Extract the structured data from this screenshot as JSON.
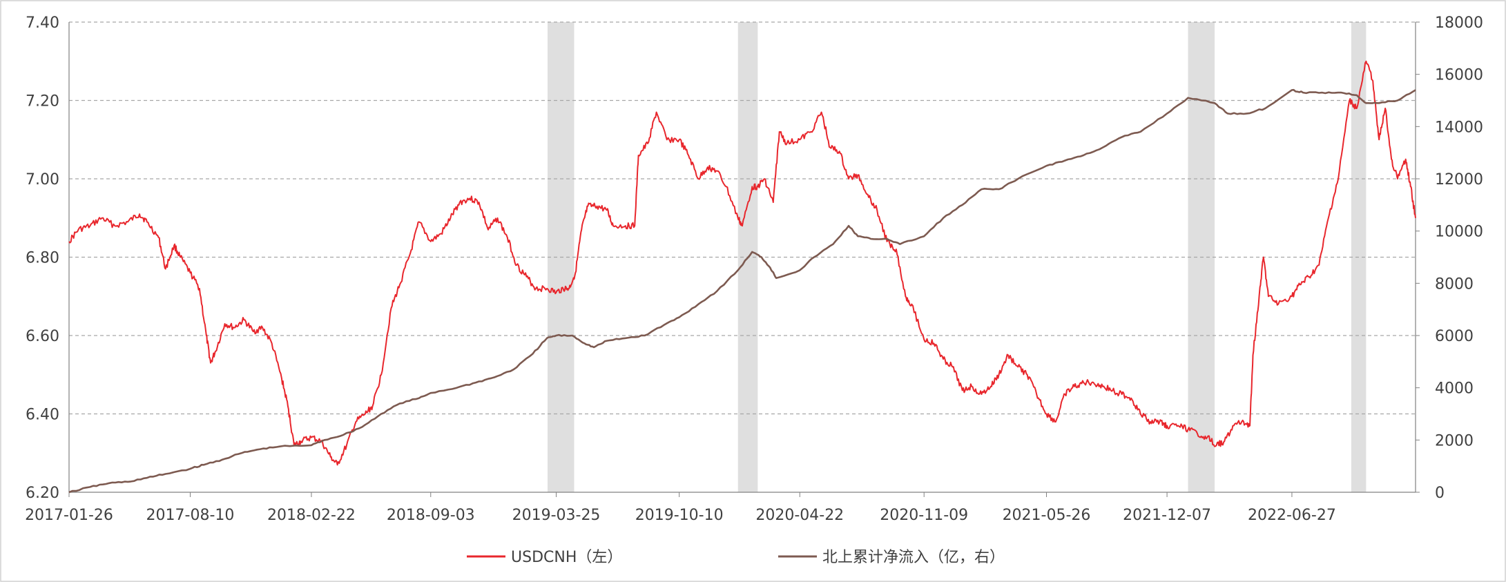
{
  "chart_data": {
    "type": "line",
    "title": "",
    "xlabel": "",
    "ylabel": "",
    "x_ticks": [
      "2017-01-26",
      "2017-08-10",
      "2018-02-22",
      "2018-09-03",
      "2019-03-25",
      "2019-10-10",
      "2020-04-22",
      "2020-11-09",
      "2021-05-26",
      "2021-12-07",
      "2022-06-27"
    ],
    "x_range": [
      "2017-01-26",
      "2023-01-13"
    ],
    "y_left": {
      "ticks": [
        "6.20",
        "6.40",
        "6.60",
        "6.80",
        "7.00",
        "7.20",
        "7.40"
      ],
      "ylim": [
        6.2,
        7.4
      ]
    },
    "y_right": {
      "ticks": [
        "0",
        "2000",
        "4000",
        "6000",
        "8000",
        "10000",
        "12000",
        "14000",
        "16000",
        "18000"
      ],
      "ylim": [
        0,
        18000
      ]
    },
    "grid": {
      "horizontal": true,
      "style": "dashed"
    },
    "legend_position": "bottom-center",
    "shaded_periods": [
      [
        "2019-03-11",
        "2019-04-23"
      ],
      [
        "2020-01-13",
        "2020-02-14"
      ],
      [
        "2022-01-10",
        "2022-02-22"
      ],
      [
        "2022-10-01",
        "2022-10-25"
      ]
    ],
    "series": [
      {
        "name": "USDCNH（左）",
        "axis": "left",
        "color": "#e8262c",
        "points": [
          [
            "2017-01-26",
            6.84
          ],
          [
            "2017-02-10",
            6.87
          ],
          [
            "2017-03-01",
            6.88
          ],
          [
            "2017-03-20",
            6.9
          ],
          [
            "2017-04-10",
            6.88
          ],
          [
            "2017-05-01",
            6.89
          ],
          [
            "2017-05-20",
            6.91
          ],
          [
            "2017-06-01",
            6.89
          ],
          [
            "2017-06-20",
            6.85
          ],
          [
            "2017-07-01",
            6.77
          ],
          [
            "2017-07-15",
            6.83
          ],
          [
            "2017-07-25",
            6.8
          ],
          [
            "2017-08-10",
            6.76
          ],
          [
            "2017-08-25",
            6.72
          ],
          [
            "2017-09-05",
            6.6
          ],
          [
            "2017-09-12",
            6.53
          ],
          [
            "2017-09-20",
            6.56
          ],
          [
            "2017-10-05",
            6.63
          ],
          [
            "2017-10-20",
            6.62
          ],
          [
            "2017-11-05",
            6.64
          ],
          [
            "2017-11-20",
            6.61
          ],
          [
            "2017-12-05",
            6.62
          ],
          [
            "2017-12-20",
            6.58
          ],
          [
            "2018-01-05",
            6.49
          ],
          [
            "2018-01-15",
            6.42
          ],
          [
            "2018-01-25",
            6.32
          ],
          [
            "2018-02-05",
            6.33
          ],
          [
            "2018-02-22",
            6.34
          ],
          [
            "2018-03-10",
            6.33
          ],
          [
            "2018-03-25",
            6.29
          ],
          [
            "2018-04-05",
            6.27
          ],
          [
            "2018-04-20",
            6.32
          ],
          [
            "2018-05-05",
            6.38
          ],
          [
            "2018-05-20",
            6.4
          ],
          [
            "2018-06-01",
            6.42
          ],
          [
            "2018-06-15",
            6.5
          ],
          [
            "2018-07-01",
            6.67
          ],
          [
            "2018-07-15",
            6.73
          ],
          [
            "2018-08-01",
            6.81
          ],
          [
            "2018-08-15",
            6.89
          ],
          [
            "2018-09-03",
            6.84
          ],
          [
            "2018-09-20",
            6.86
          ],
          [
            "2018-10-05",
            6.9
          ],
          [
            "2018-10-20",
            6.94
          ],
          [
            "2018-11-05",
            6.95
          ],
          [
            "2018-11-20",
            6.94
          ],
          [
            "2018-12-05",
            6.87
          ],
          [
            "2018-12-20",
            6.9
          ],
          [
            "2019-01-05",
            6.85
          ],
          [
            "2019-01-20",
            6.78
          ],
          [
            "2019-02-05",
            6.75
          ],
          [
            "2019-02-20",
            6.72
          ],
          [
            "2019-03-10",
            6.72
          ],
          [
            "2019-03-25",
            6.71
          ],
          [
            "2019-04-05",
            6.72
          ],
          [
            "2019-04-15",
            6.72
          ],
          [
            "2019-04-25",
            6.76
          ],
          [
            "2019-05-05",
            6.87
          ],
          [
            "2019-05-15",
            6.93
          ],
          [
            "2019-05-30",
            6.93
          ],
          [
            "2019-06-15",
            6.92
          ],
          [
            "2019-06-25",
            6.88
          ],
          [
            "2019-07-15",
            6.88
          ],
          [
            "2019-07-30",
            6.88
          ],
          [
            "2019-08-05",
            7.06
          ],
          [
            "2019-08-20",
            7.09
          ],
          [
            "2019-09-03",
            7.17
          ],
          [
            "2019-09-20",
            7.1
          ],
          [
            "2019-10-10",
            7.1
          ],
          [
            "2019-10-25",
            7.06
          ],
          [
            "2019-11-10",
            7.0
          ],
          [
            "2019-11-25",
            7.03
          ],
          [
            "2019-12-10",
            7.02
          ],
          [
            "2019-12-25",
            6.98
          ],
          [
            "2020-01-13",
            6.9
          ],
          [
            "2020-01-20",
            6.88
          ],
          [
            "2020-02-05",
            6.98
          ],
          [
            "2020-02-14",
            6.98
          ],
          [
            "2020-02-25",
            7.0
          ],
          [
            "2020-03-10",
            6.94
          ],
          [
            "2020-03-20",
            7.12
          ],
          [
            "2020-04-01",
            7.09
          ],
          [
            "2020-04-22",
            7.1
          ],
          [
            "2020-05-10",
            7.12
          ],
          [
            "2020-05-27",
            7.17
          ],
          [
            "2020-06-10",
            7.08
          ],
          [
            "2020-06-25",
            7.07
          ],
          [
            "2020-07-10",
            7.0
          ],
          [
            "2020-07-25",
            7.01
          ],
          [
            "2020-08-10",
            6.96
          ],
          [
            "2020-08-25",
            6.92
          ],
          [
            "2020-09-10",
            6.84
          ],
          [
            "2020-09-25",
            6.82
          ],
          [
            "2020-10-10",
            6.7
          ],
          [
            "2020-10-20",
            6.68
          ],
          [
            "2020-11-09",
            6.59
          ],
          [
            "2020-11-25",
            6.58
          ],
          [
            "2020-12-10",
            6.54
          ],
          [
            "2020-12-25",
            6.52
          ],
          [
            "2021-01-10",
            6.46
          ],
          [
            "2021-01-25",
            6.47
          ],
          [
            "2021-02-10",
            6.45
          ],
          [
            "2021-02-25",
            6.47
          ],
          [
            "2021-03-10",
            6.5
          ],
          [
            "2021-03-25",
            6.55
          ],
          [
            "2021-04-10",
            6.52
          ],
          [
            "2021-04-25",
            6.5
          ],
          [
            "2021-05-10",
            6.45
          ],
          [
            "2021-05-26",
            6.4
          ],
          [
            "2021-06-10",
            6.38
          ],
          [
            "2021-06-25",
            6.45
          ],
          [
            "2021-07-10",
            6.47
          ],
          [
            "2021-07-25",
            6.48
          ],
          [
            "2021-08-10",
            6.48
          ],
          [
            "2021-08-25",
            6.47
          ],
          [
            "2021-09-10",
            6.46
          ],
          [
            "2021-09-25",
            6.45
          ],
          [
            "2021-10-10",
            6.44
          ],
          [
            "2021-10-25",
            6.4
          ],
          [
            "2021-11-10",
            6.38
          ],
          [
            "2021-11-25",
            6.38
          ],
          [
            "2021-12-07",
            6.37
          ],
          [
            "2021-12-25",
            6.37
          ],
          [
            "2022-01-10",
            6.36
          ],
          [
            "2022-01-25",
            6.35
          ],
          [
            "2022-02-10",
            6.34
          ],
          [
            "2022-02-25",
            6.32
          ],
          [
            "2022-03-10",
            6.33
          ],
          [
            "2022-03-25",
            6.37
          ],
          [
            "2022-04-10",
            6.38
          ],
          [
            "2022-04-20",
            6.37
          ],
          [
            "2022-04-25",
            6.55
          ],
          [
            "2022-05-05",
            6.7
          ],
          [
            "2022-05-12",
            6.8
          ],
          [
            "2022-05-20",
            6.7
          ],
          [
            "2022-06-05",
            6.68
          ],
          [
            "2022-06-27",
            6.7
          ],
          [
            "2022-07-10",
            6.73
          ],
          [
            "2022-07-25",
            6.75
          ],
          [
            "2022-08-10",
            6.78
          ],
          [
            "2022-08-25",
            6.9
          ],
          [
            "2022-09-10",
            7.0
          ],
          [
            "2022-09-28",
            7.2
          ],
          [
            "2022-10-10",
            7.18
          ],
          [
            "2022-10-25",
            7.3
          ],
          [
            "2022-11-05",
            7.25
          ],
          [
            "2022-11-15",
            7.1
          ],
          [
            "2022-11-25",
            7.18
          ],
          [
            "2022-12-05",
            7.05
          ],
          [
            "2022-12-15",
            7.0
          ],
          [
            "2022-12-28",
            7.05
          ],
          [
            "2023-01-05",
            6.98
          ],
          [
            "2023-01-13",
            6.9
          ]
        ]
      },
      {
        "name": "北上累计净流入（亿，右）",
        "axis": "right",
        "color": "#7d5a50",
        "points": [
          [
            "2017-01-26",
            0
          ],
          [
            "2017-03-01",
            200
          ],
          [
            "2017-04-01",
            350
          ],
          [
            "2017-05-01",
            400
          ],
          [
            "2017-06-01",
            550
          ],
          [
            "2017-07-01",
            700
          ],
          [
            "2017-08-10",
            900
          ],
          [
            "2017-09-01",
            1050
          ],
          [
            "2017-10-01",
            1250
          ],
          [
            "2017-11-01",
            1500
          ],
          [
            "2017-12-01",
            1650
          ],
          [
            "2018-01-01",
            1750
          ],
          [
            "2018-02-22",
            1800
          ],
          [
            "2018-03-15",
            2000
          ],
          [
            "2018-04-15",
            2200
          ],
          [
            "2018-05-15",
            2500
          ],
          [
            "2018-06-15",
            3000
          ],
          [
            "2018-07-15",
            3400
          ],
          [
            "2018-08-15",
            3600
          ],
          [
            "2018-09-03",
            3800
          ],
          [
            "2018-10-15",
            4000
          ],
          [
            "2018-11-15",
            4200
          ],
          [
            "2018-12-15",
            4400
          ],
          [
            "2019-01-15",
            4700
          ],
          [
            "2019-02-15",
            5300
          ],
          [
            "2019-03-10",
            5900
          ],
          [
            "2019-03-25",
            6000
          ],
          [
            "2019-04-20",
            6000
          ],
          [
            "2019-05-10",
            5700
          ],
          [
            "2019-05-25",
            5550
          ],
          [
            "2019-06-15",
            5800
          ],
          [
            "2019-07-15",
            5900
          ],
          [
            "2019-08-15",
            6000
          ],
          [
            "2019-09-15",
            6400
          ],
          [
            "2019-10-10",
            6700
          ],
          [
            "2019-11-10",
            7200
          ],
          [
            "2019-12-10",
            7700
          ],
          [
            "2020-01-13",
            8500
          ],
          [
            "2020-02-05",
            9200
          ],
          [
            "2020-02-20",
            9000
          ],
          [
            "2020-03-05",
            8600
          ],
          [
            "2020-03-15",
            8200
          ],
          [
            "2020-04-22",
            8500
          ],
          [
            "2020-05-15",
            9000
          ],
          [
            "2020-06-15",
            9500
          ],
          [
            "2020-07-10",
            10200
          ],
          [
            "2020-07-25",
            9800
          ],
          [
            "2020-08-15",
            9700
          ],
          [
            "2020-09-10",
            9700
          ],
          [
            "2020-10-01",
            9500
          ],
          [
            "2020-11-09",
            9800
          ],
          [
            "2020-12-10",
            10500
          ],
          [
            "2021-01-10",
            11000
          ],
          [
            "2021-02-10",
            11600
          ],
          [
            "2021-03-10",
            11600
          ],
          [
            "2021-04-10",
            12000
          ],
          [
            "2021-05-26",
            12500
          ],
          [
            "2021-06-25",
            12700
          ],
          [
            "2021-07-25",
            12900
          ],
          [
            "2021-08-25",
            13200
          ],
          [
            "2021-09-25",
            13600
          ],
          [
            "2021-10-25",
            13800
          ],
          [
            "2021-12-07",
            14500
          ],
          [
            "2022-01-10",
            15100
          ],
          [
            "2022-02-22",
            14900
          ],
          [
            "2022-03-15",
            14500
          ],
          [
            "2022-04-15",
            14500
          ],
          [
            "2022-05-15",
            14700
          ],
          [
            "2022-06-27",
            15400
          ],
          [
            "2022-07-15",
            15300
          ],
          [
            "2022-08-15",
            15300
          ],
          [
            "2022-09-15",
            15300
          ],
          [
            "2022-10-10",
            15200
          ],
          [
            "2022-10-25",
            14900
          ],
          [
            "2022-11-15",
            14900
          ],
          [
            "2022-12-15",
            15000
          ],
          [
            "2023-01-13",
            15400
          ]
        ]
      }
    ]
  }
}
